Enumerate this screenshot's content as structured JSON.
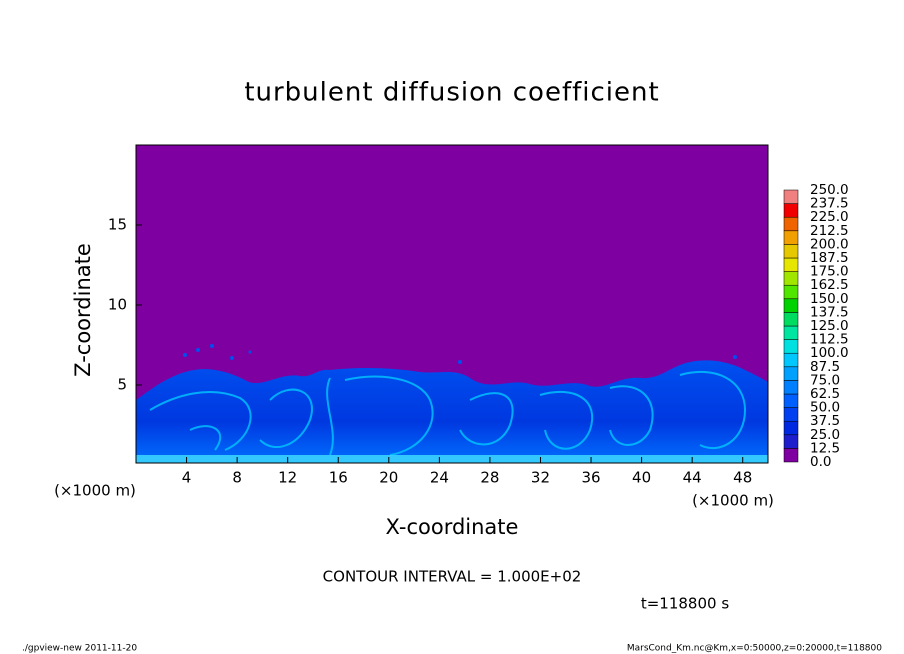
{
  "chart_data": {
    "type": "contour",
    "title": "turbulent diffusion coefficient",
    "xlabel": "X-coordinate",
    "ylabel": "Z-coordinate",
    "x_unit": "(×1000 m)",
    "y_unit": "(×1000 m)",
    "xlim": [
      0,
      50
    ],
    "ylim": [
      0,
      20
    ],
    "xticks": [
      4,
      8,
      12,
      16,
      20,
      24,
      28,
      32,
      36,
      40,
      44,
      48
    ],
    "yticks": [
      5,
      10,
      15
    ],
    "colorbar": {
      "levels": [
        {
          "value": 0,
          "label": "0.0"
        },
        {
          "value": 12.5,
          "label": "12.5"
        },
        {
          "value": 25,
          "label": "25.0"
        },
        {
          "value": 37.5,
          "label": "37.5"
        },
        {
          "value": 50,
          "label": "50.0"
        },
        {
          "value": 62.5,
          "label": "62.5"
        },
        {
          "value": 75,
          "label": "75.0"
        },
        {
          "value": 87.5,
          "label": "87.5"
        },
        {
          "value": 100,
          "label": "100.0"
        },
        {
          "value": 112.5,
          "label": "112.5"
        },
        {
          "value": 125,
          "label": "125.0"
        },
        {
          "value": 137.5,
          "label": "137.5"
        },
        {
          "value": 150,
          "label": "150.0"
        },
        {
          "value": 162.5,
          "label": "162.5"
        },
        {
          "value": 175,
          "label": "175.0"
        },
        {
          "value": 187.5,
          "label": "187.5"
        },
        {
          "value": 200,
          "label": "200.0"
        },
        {
          "value": 212.5,
          "label": "212.5"
        },
        {
          "value": 225,
          "label": "225.0"
        },
        {
          "value": 237.5,
          "label": "237.5"
        },
        {
          "value": 250,
          "label": "250.0"
        }
      ],
      "colors": [
        "#7f00a0",
        "#1e1ecc",
        "#0028e0",
        "#0040f0",
        "#0060ff",
        "#0080ff",
        "#00a0ff",
        "#00c8ff",
        "#00e0e0",
        "#00e6a0",
        "#00dc60",
        "#00d200",
        "#50e600",
        "#a0e600",
        "#e6e600",
        "#e6c800",
        "#f0a000",
        "#f06400",
        "#f00000",
        "#f08080"
      ]
    },
    "annotations": [
      "CONTOUR INTERVAL = 1.000E+02",
      "t=118800 s"
    ],
    "footer_left": "./gpview-new  2011-11-20",
    "footer_right": "MarsCond_Km.nc@Km,x=0:50000,z=0:20000,t=118800"
  }
}
